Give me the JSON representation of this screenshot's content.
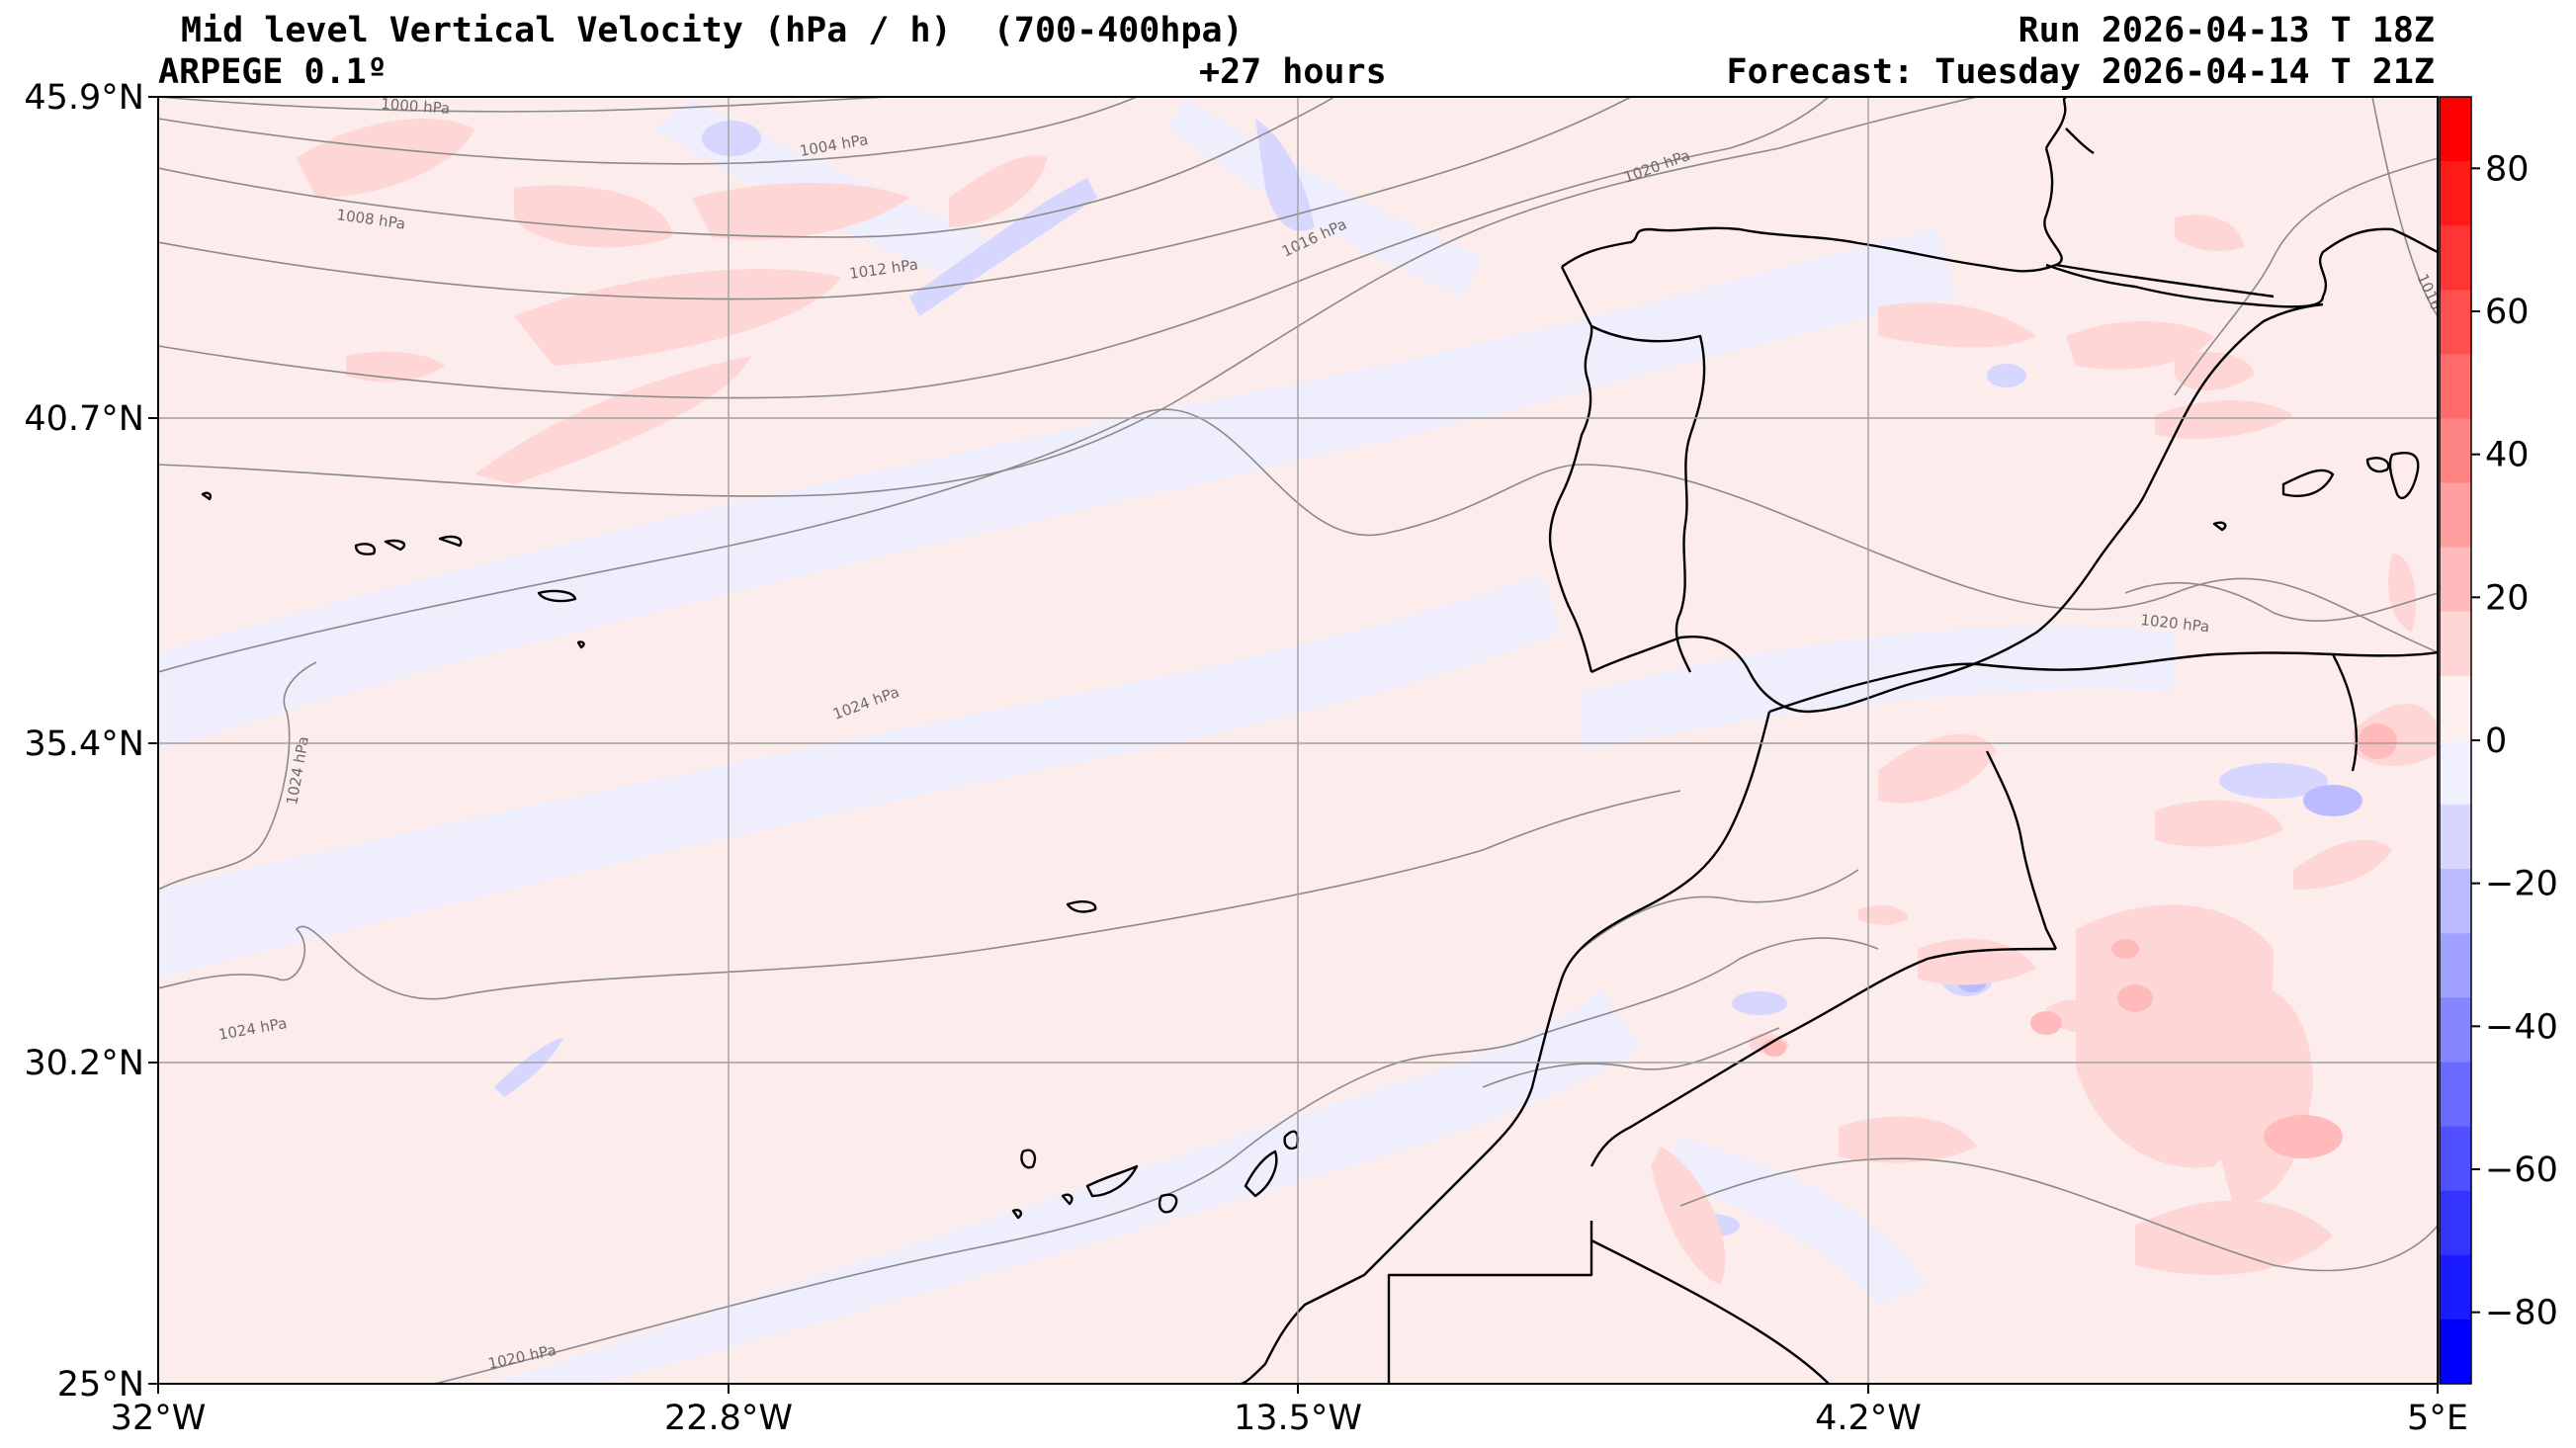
{
  "header": {
    "title": "Mid level Vertical Velocity (hPa / h)  (700-400hpa)",
    "model": "ARPEGE 0.1º",
    "lead_time": "+27 hours",
    "run": "Run 2026-04-13 T 18Z",
    "forecast": "Forecast: Tuesday 2026-04-14 T 21Z"
  },
  "axes": {
    "x_ticks": [
      "32°W",
      "22.8°W",
      "13.5°W",
      "4.2°W",
      "5°E"
    ],
    "y_ticks": [
      "45.9°N",
      "40.7°N",
      "35.4°N",
      "30.2°N",
      "25°N"
    ]
  },
  "colorbar": {
    "ticks": [
      "80",
      "60",
      "40",
      "20",
      "0",
      "−20",
      "−40",
      "−60",
      "−80"
    ],
    "colors_top_to_bottom": [
      "#ff0000",
      "#ff1a1a",
      "#ff3434",
      "#ff5050",
      "#ff6a6a",
      "#ff8585",
      "#ffa0a0",
      "#ffbbbb",
      "#ffd6d6",
      "#fff0f0",
      "#f0f0ff",
      "#d6d6ff",
      "#bbbbff",
      "#a0a0ff",
      "#8585ff",
      "#6a6aff",
      "#5050ff",
      "#3434ff",
      "#1a1aff",
      "#0000ff"
    ]
  },
  "isobars": {
    "labels": [
      "1000 hPa",
      "1004 hPa",
      "1008 hPa",
      "1012 hPa",
      "1016 hPa",
      "1020 hPa",
      "1024 hPa",
      "1024 hPa",
      "1024 hPa",
      "1020 hPa",
      "1020 hPa",
      "1016"
    ]
  },
  "colors": {
    "background_positive": "#fdecec",
    "background_negative": "#eeeefc",
    "coastline": "#000000",
    "grid": "#a0a0a0",
    "isobar": "#8a8a8a"
  }
}
